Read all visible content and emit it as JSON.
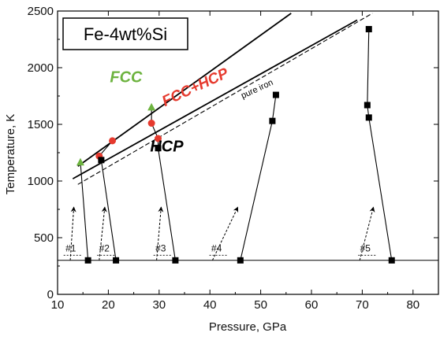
{
  "chart_data": {
    "type": "scatter",
    "title": "Fe-4wt%Si",
    "xlabel": "Pressure, GPa",
    "ylabel": "Temperature, K",
    "xlim": [
      10,
      85
    ],
    "ylim": [
      0,
      2500
    ],
    "xticks": [
      10,
      20,
      30,
      40,
      50,
      60,
      70,
      80
    ],
    "yticks": [
      0,
      500,
      1000,
      1500,
      2000,
      2500
    ],
    "grid": false,
    "colors": {
      "fcc": "#6db33f",
      "fcc_hcp": "#e63a2e",
      "hcp": "#000000"
    },
    "phase_labels": [
      {
        "text": "FCC",
        "x": 23.5,
        "y": 1870,
        "color": "#6db33f",
        "size": 20
      },
      {
        "text": "FCC+HCP",
        "x": 37.5,
        "y": 1790,
        "color": "#e63a2e",
        "size": 19,
        "angle": -25
      },
      {
        "text": "HCP",
        "x": 31.5,
        "y": 1260,
        "color": "#000000",
        "size": 20
      },
      {
        "text": "pure iron",
        "x": 49.5,
        "y": 1790,
        "color": "#000000",
        "size": 11,
        "angle": -25
      }
    ],
    "boundaries": [
      {
        "name": "upper",
        "x": [
          14,
          56
        ],
        "y": [
          1130,
          2480
        ],
        "style": "solid"
      },
      {
        "name": "lower",
        "x": [
          13,
          69
        ],
        "y": [
          1020,
          2420
        ],
        "style": "solid"
      },
      {
        "name": "pure iron",
        "x": [
          14,
          72
        ],
        "y": [
          970,
          2480
        ],
        "style": "dashed"
      }
    ],
    "series": [
      {
        "name": "FCC",
        "marker": "triangle",
        "color": "#6db33f",
        "x": [
          14.5,
          28.5
        ],
        "y": [
          1165,
          1650
        ]
      },
      {
        "name": "FCC+HCP",
        "marker": "circle",
        "color": "#e63a2e",
        "x": [
          18.2,
          20.8,
          28.5,
          29.8
        ],
        "y": [
          1220,
          1355,
          1510,
          1375
        ]
      },
      {
        "name": "HCP",
        "marker": "square",
        "color": "#000000",
        "x": [
          16.0,
          21.5,
          18.6,
          33.2,
          29.8,
          46.0,
          52.3,
          53.0,
          75.8,
          71.3,
          71.0,
          71.3
        ],
        "y": [
          300,
          300,
          1185,
          300,
          1290,
          300,
          1530,
          1760,
          300,
          1560,
          1670,
          2340
        ]
      }
    ],
    "runs": [
      {
        "label": "#1",
        "label_x": 12.6,
        "label_y": 380,
        "arrow_from": [
          12.5,
          300
        ],
        "arrow_to": [
          13.2,
          770
        ],
        "path": [
          [
            16.0,
            300
          ],
          [
            14.5,
            1165
          ]
        ]
      },
      {
        "label": "#2",
        "label_x": 19.2,
        "label_y": 380,
        "arrow_from": [
          18.2,
          300
        ],
        "arrow_to": [
          19.3,
          770
        ],
        "path": [
          [
            21.5,
            300
          ],
          [
            18.6,
            1185
          ],
          [
            18.2,
            1220
          ],
          [
            20.8,
            1355
          ]
        ]
      },
      {
        "label": "#3",
        "label_x": 30.3,
        "label_y": 380,
        "arrow_from": [
          29.5,
          300
        ],
        "arrow_to": [
          30.4,
          770
        ],
        "path": [
          [
            33.2,
            300
          ],
          [
            29.8,
            1290
          ],
          [
            29.8,
            1375
          ],
          [
            28.5,
            1510
          ],
          [
            28.5,
            1650
          ]
        ]
      },
      {
        "label": "#4",
        "label_x": 41.3,
        "label_y": 380,
        "arrow_from": [
          40.5,
          300
        ],
        "arrow_to": [
          45.5,
          770
        ],
        "path": [
          [
            46.0,
            300
          ],
          [
            52.3,
            1530
          ],
          [
            53.0,
            1760
          ]
        ]
      },
      {
        "label": "#5",
        "label_x": 70.6,
        "label_y": 380,
        "arrow_from": [
          69.5,
          300
        ],
        "arrow_to": [
          72.2,
          770
        ],
        "path": [
          [
            75.8,
            300
          ],
          [
            71.3,
            1560
          ],
          [
            71.0,
            1670
          ],
          [
            71.3,
            2340
          ]
        ]
      }
    ],
    "baseline": {
      "y": 300,
      "x": [
        10,
        85
      ]
    }
  }
}
